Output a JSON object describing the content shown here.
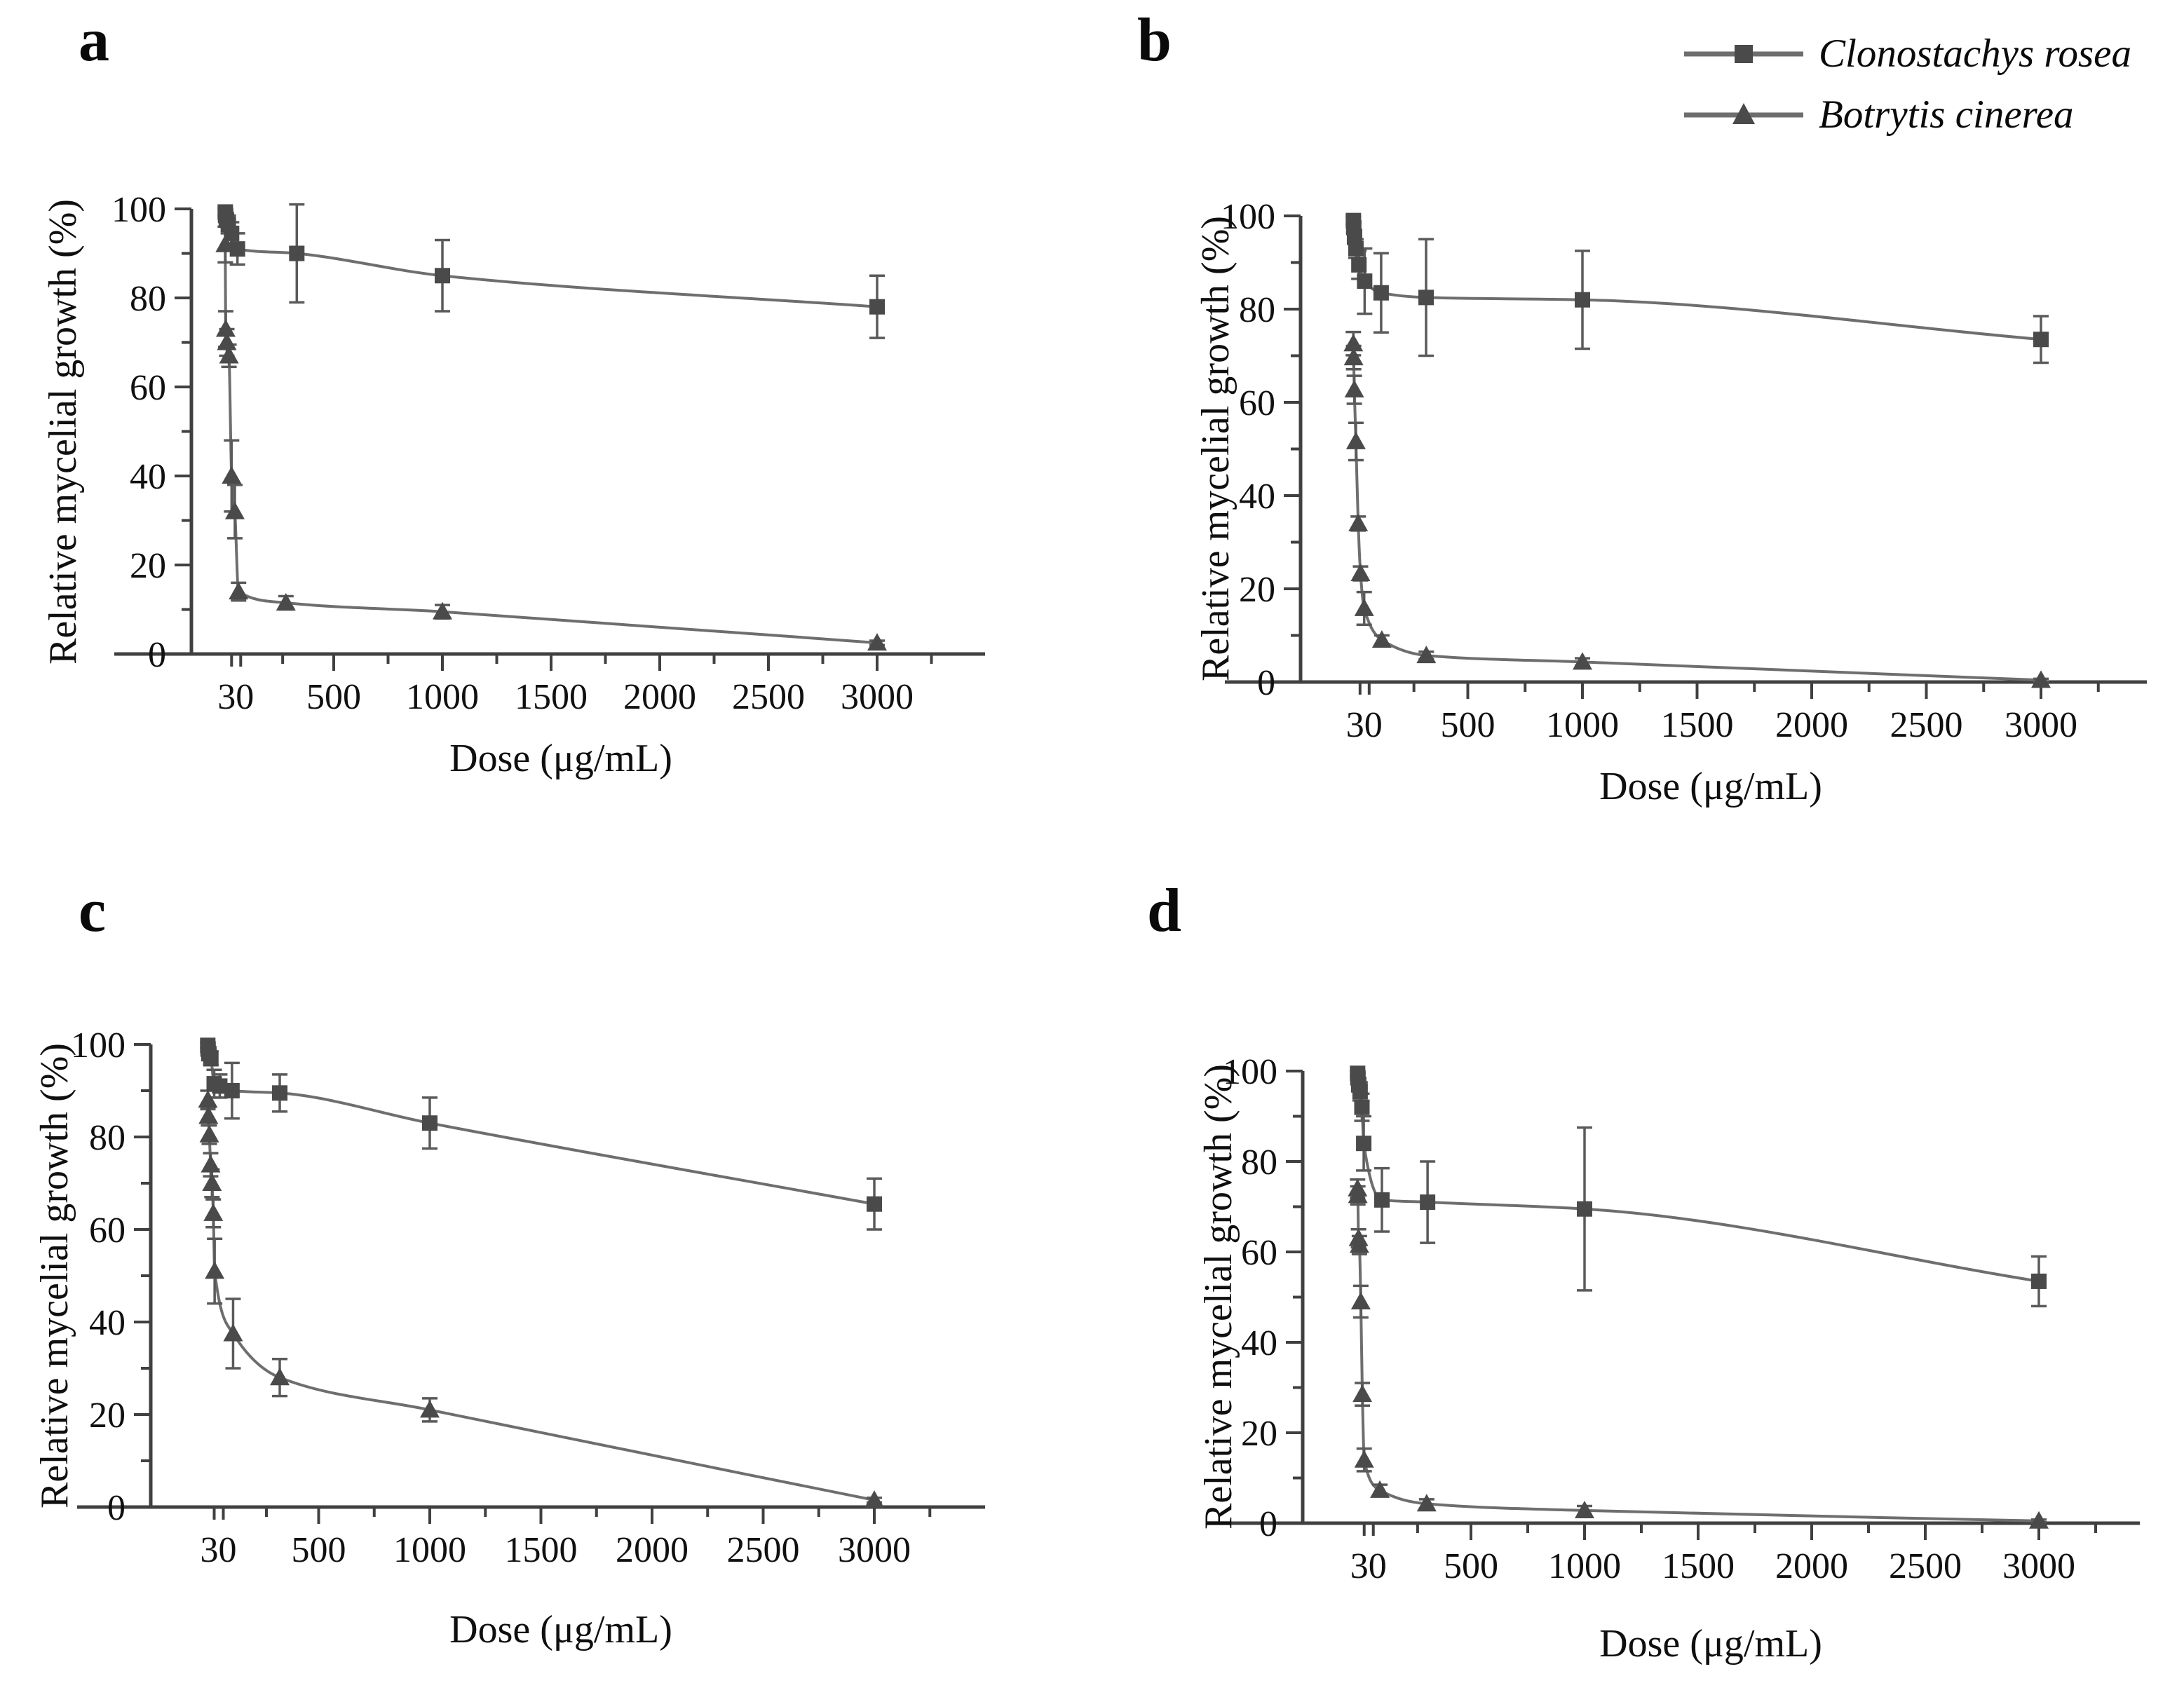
{
  "figure": {
    "background": "#ffffff",
    "colors": {
      "marker": "#4a4a4a",
      "line": "#6e6e6e",
      "error_bar": "#5a5a5a",
      "axis": "#404040",
      "text": "#101010"
    },
    "legend": {
      "items": [
        {
          "label": "Clonostachys rosea",
          "marker": "square"
        },
        {
          "label": "Botrytis cinerea",
          "marker": "triangle"
        }
      ]
    }
  },
  "chart_data": [
    {
      "panel": "a",
      "type": "line",
      "xlabel": "Dose (μg/mL)",
      "ylabel": "Relative mycelial growth (%)",
      "xlim": [
        -350,
        3450
      ],
      "ylim": [
        0,
        100
      ],
      "x_major_ticks": [
        30,
        500,
        1000,
        1500,
        2000,
        2500,
        3000
      ],
      "x_minor_ticks": [
        265,
        750,
        1250,
        1750,
        2250,
        2750,
        3250
      ],
      "y_major_ticks": [
        0,
        20,
        40,
        60,
        80,
        100
      ],
      "y_minor_ticks": [
        10,
        30,
        50,
        70,
        90
      ],
      "grid": false,
      "series": [
        {
          "name": "Clonostachys rosea",
          "marker": "square",
          "x": [
            1,
            2.5,
            6,
            15,
            30,
            57,
            330,
            1000,
            3000
          ],
          "y": [
            99.3,
            98.5,
            97.5,
            96.5,
            94.5,
            91,
            90,
            85,
            78
          ],
          "err": [
            0.8,
            1,
            1.5,
            2,
            2.5,
            3.5,
            11,
            8,
            7
          ]
        },
        {
          "name": "Botrytis cinerea",
          "marker": "triangle",
          "x": [
            1,
            3,
            8,
            18,
            30,
            45,
            62,
            280,
            1000,
            3000
          ],
          "y": [
            92,
            73,
            70,
            67,
            40,
            32,
            14,
            11.5,
            9.5,
            2.5
          ],
          "err": [
            4,
            4,
            3,
            2.5,
            8,
            6,
            2,
            1.5,
            1.5,
            0.5
          ]
        }
      ]
    },
    {
      "panel": "b",
      "type": "line",
      "xlabel": "Dose (μg/mL)",
      "ylabel": "Relative mycelial growth (%)",
      "xlim": [
        -350,
        3450
      ],
      "ylim": [
        0,
        100
      ],
      "x_major_ticks": [
        30,
        500,
        1000,
        1500,
        2000,
        2500,
        3000
      ],
      "x_minor_ticks": [
        265,
        750,
        1250,
        1750,
        2250,
        2750,
        3250
      ],
      "y_major_ticks": [
        0,
        20,
        40,
        60,
        80,
        100
      ],
      "y_minor_ticks": [
        10,
        30,
        50,
        70,
        90
      ],
      "grid": false,
      "series": [
        {
          "name": "Clonostachys rosea",
          "marker": "square",
          "x": [
            1,
            2.5,
            6,
            12,
            25,
            50,
            122,
            318,
            1000,
            3000
          ],
          "y": [
            99,
            97.5,
            95.5,
            93,
            89.5,
            86,
            83.5,
            82.5,
            82,
            73.5
          ],
          "err": [
            0.8,
            1,
            1.5,
            2,
            3,
            7,
            8.5,
            12.5,
            10.5,
            5
          ]
        },
        {
          "name": "Botrytis cinerea",
          "marker": "triangle",
          "x": [
            0.8,
            2,
            5,
            12,
            22,
            32,
            48,
            125,
            319,
            1000,
            3000
          ],
          "y": [
            72.6,
            69.6,
            62.7,
            51.6,
            34,
            23.3,
            15.8,
            9,
            5.7,
            4.3,
            0.4
          ],
          "err": [
            2.5,
            2.5,
            3,
            4,
            1.5,
            1.5,
            3.5,
            1,
            0.8,
            0.8,
            0.3
          ]
        }
      ]
    },
    {
      "panel": "c",
      "type": "line",
      "xlabel": "Dose (μg/mL)",
      "ylabel": "Relative mycelial growth (%)",
      "xlim": [
        -350,
        3450
      ],
      "ylim": [
        0,
        100
      ],
      "x_major_ticks": [
        30,
        500,
        1000,
        1500,
        2000,
        2500,
        3000
      ],
      "x_minor_ticks": [
        265,
        750,
        1250,
        1750,
        2250,
        2750,
        3250
      ],
      "y_major_ticks": [
        0,
        20,
        40,
        60,
        80,
        100
      ],
      "y_minor_ticks": [
        10,
        30,
        50,
        70,
        90
      ],
      "grid": false,
      "series": [
        {
          "name": "Clonostachys rosea",
          "marker": "square",
          "x": [
            1,
            2.5,
            6,
            15,
            30,
            55,
            110,
            325,
            1000,
            3000
          ],
          "y": [
            99.8,
            99,
            98,
            97,
            91.5,
            91,
            90,
            89.5,
            83,
            65.5
          ],
          "err": [
            0.5,
            0.5,
            1,
            1.5,
            3,
            2.5,
            6,
            4,
            5.5,
            5.5
          ]
        },
        {
          "name": "Botrytis cinerea",
          "marker": "triangle",
          "x": [
            1.5,
            4,
            8,
            14,
            20,
            26,
            32,
            115,
            325,
            1000,
            3000
          ],
          "y": [
            88,
            84.5,
            80.5,
            74,
            70,
            63.5,
            51,
            37.5,
            28,
            21,
            1.5
          ],
          "err": [
            2,
            2,
            2,
            2.5,
            3,
            3,
            7,
            7.5,
            4,
            2.5,
            0.5
          ]
        }
      ]
    },
    {
      "panel": "d",
      "type": "line",
      "xlabel": "Dose (μg/mL)",
      "ylabel": "Relative mycelial growth (%)",
      "xlim": [
        -350,
        3450
      ],
      "ylim": [
        0,
        100
      ],
      "x_major_ticks": [
        30,
        500,
        1000,
        1500,
        2000,
        2500,
        3000
      ],
      "x_minor_ticks": [
        265,
        750,
        1250,
        1750,
        2250,
        2750,
        3250
      ],
      "y_major_ticks": [
        0,
        20,
        40,
        60,
        80,
        100
      ],
      "y_minor_ticks": [
        10,
        30,
        50,
        70,
        90
      ],
      "grid": false,
      "series": [
        {
          "name": "Clonostachys rosea",
          "marker": "square",
          "x": [
            1,
            2.5,
            6,
            12,
            20,
            28,
            108,
            309,
            1000,
            3000
          ],
          "y": [
            99.5,
            98.5,
            97,
            95.5,
            92,
            84,
            71.5,
            71,
            69.5,
            53.5
          ],
          "err": [
            0.5,
            1,
            1.5,
            2,
            3,
            6,
            7,
            9,
            18,
            5.5
          ]
        },
        {
          "name": "Botrytis cinerea",
          "marker": "triangle",
          "x": [
            0.8,
            2,
            5,
            9,
            15,
            22,
            30,
            99,
            305,
            1000,
            3000
          ],
          "y": [
            74,
            72.5,
            63,
            61.5,
            49,
            28.5,
            14,
            7.3,
            4.3,
            2.8,
            0.5
          ],
          "err": [
            2,
            2,
            2,
            2,
            3.5,
            2.5,
            2.5,
            1.2,
            1,
            1,
            0.3
          ]
        }
      ]
    }
  ]
}
